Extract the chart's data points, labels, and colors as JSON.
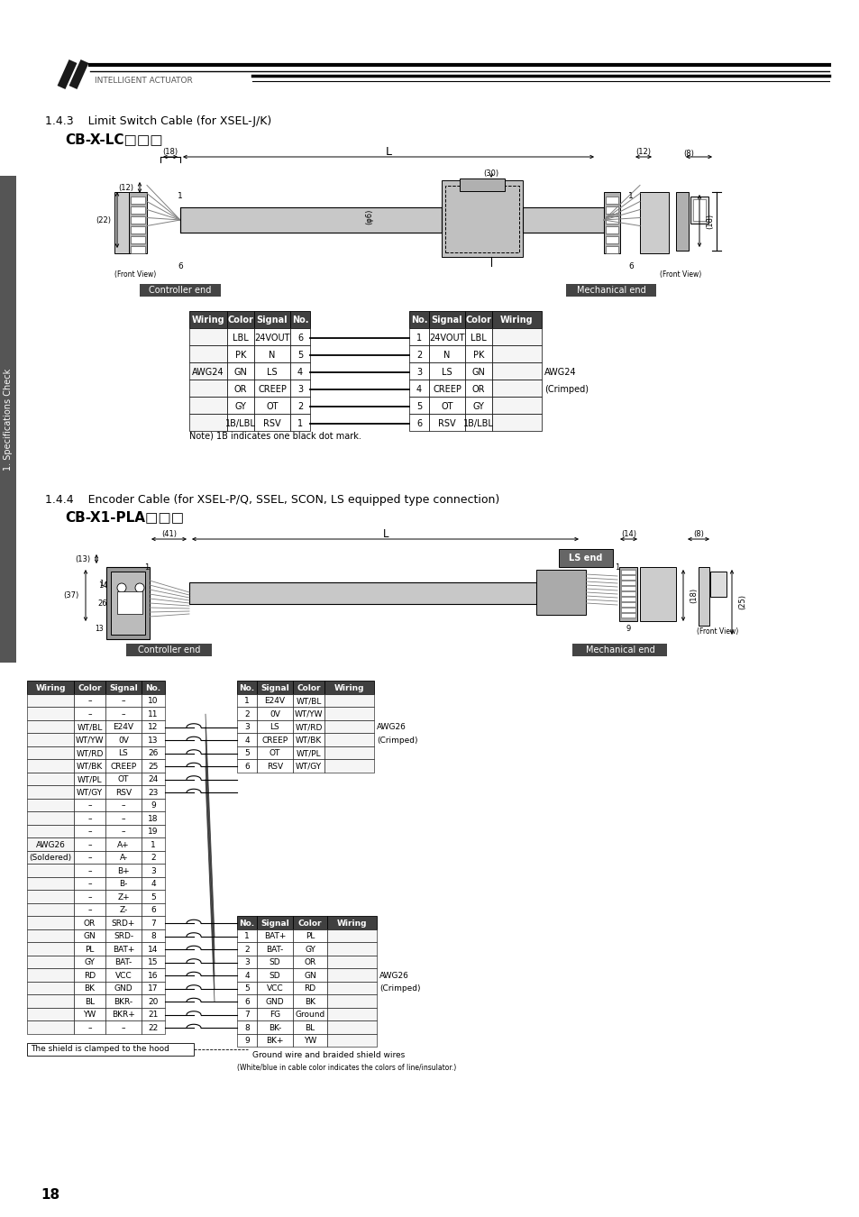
{
  "page_num": "18",
  "section_1": "1.4.3    Limit Switch Cable (for XSEL-J/K)",
  "subtitle_1": "CB-X-LC□□□",
  "section_2": "1.4.4    Encoder Cable (for XSEL-P/Q, SSEL, SCON, LS equipped type connection)",
  "subtitle_2": "CB-X1-PLA□□□",
  "company": "INTELLIGENT ACTUATOR",
  "note_1": "Note) 1B indicates one black dot mark.",
  "note_2": "The shield is clamped to the hood",
  "note_3": "Ground wire and braided shield wires",
  "note_4": "(White/blue in cable color indicates the colors of line/insulator.)",
  "table1_left_headers": [
    "Wiring",
    "Color",
    "Signal",
    "No."
  ],
  "table1_left_data": [
    [
      "",
      "LBL",
      "24VOUT",
      "6"
    ],
    [
      "",
      "PK",
      "N",
      "5"
    ],
    [
      "AWG24",
      "GN",
      "LS",
      "4"
    ],
    [
      "",
      "OR",
      "CREEP",
      "3"
    ],
    [
      "",
      "GY",
      "OT",
      "2"
    ],
    [
      "",
      "1B/LBL",
      "RSV",
      "1"
    ]
  ],
  "table1_right_headers": [
    "No.",
    "Signal",
    "Color",
    "Wiring"
  ],
  "table1_right_data": [
    [
      "1",
      "24VOUT",
      "LBL",
      ""
    ],
    [
      "2",
      "N",
      "PK",
      ""
    ],
    [
      "3",
      "LS",
      "GN",
      ""
    ],
    [
      "4",
      "CREEP",
      "OR",
      ""
    ],
    [
      "5",
      "OT",
      "GY",
      ""
    ],
    [
      "6",
      "RSV",
      "1B/LBL",
      ""
    ]
  ],
  "table2_left_headers": [
    "Wiring",
    "Color",
    "Signal",
    "No."
  ],
  "table2_left_data": [
    [
      "",
      "–",
      "–",
      "10"
    ],
    [
      "",
      "–",
      "–",
      "11"
    ],
    [
      "",
      "WT/BL",
      "E24V",
      "12"
    ],
    [
      "",
      "WT/YW",
      "0V",
      "13"
    ],
    [
      "",
      "WT/RD",
      "LS",
      "26"
    ],
    [
      "",
      "WT/BK",
      "CREEP",
      "25"
    ],
    [
      "",
      "WT/PL",
      "OT",
      "24"
    ],
    [
      "",
      "WT/GY",
      "RSV",
      "23"
    ],
    [
      "",
      "–",
      "–",
      "9"
    ],
    [
      "",
      "–",
      "–",
      "18"
    ],
    [
      "",
      "–",
      "–",
      "19"
    ],
    [
      "",
      "–",
      "A+",
      "1"
    ],
    [
      "AWG26",
      "–",
      "A-",
      "2"
    ],
    [
      "(Soldered)",
      "–",
      "B+",
      "3"
    ],
    [
      "",
      "–",
      "B-",
      "4"
    ],
    [
      "",
      "–",
      "Z+",
      "5"
    ],
    [
      "",
      "–",
      "Z-",
      "6"
    ],
    [
      "",
      "OR",
      "SRD+",
      "7"
    ],
    [
      "",
      "GN",
      "SRD-",
      "8"
    ],
    [
      "",
      "PL",
      "BAT+",
      "14"
    ],
    [
      "",
      "GY",
      "BAT-",
      "15"
    ],
    [
      "",
      "RD",
      "VCC",
      "16"
    ],
    [
      "",
      "BK",
      "GND",
      "17"
    ],
    [
      "",
      "BL",
      "BKR-",
      "20"
    ],
    [
      "",
      "YW",
      "BKR+",
      "21"
    ],
    [
      "",
      "–",
      "–",
      "22"
    ]
  ],
  "table2_right1_headers": [
    "No.",
    "Signal",
    "Color",
    "Wiring"
  ],
  "table2_right1_data": [
    [
      "1",
      "E24V",
      "WT/BL",
      ""
    ],
    [
      "2",
      "0V",
      "WT/YW",
      ""
    ],
    [
      "3",
      "LS",
      "WT/RD",
      "AWG26"
    ],
    [
      "4",
      "CREEP",
      "WT/BK",
      "(Crimped)"
    ],
    [
      "5",
      "OT",
      "WT/PL",
      ""
    ],
    [
      "6",
      "RSV",
      "WT/GY",
      ""
    ]
  ],
  "table2_right2_headers": [
    "No.",
    "Signal",
    "Color",
    "Wiring"
  ],
  "table2_right2_data": [
    [
      "1",
      "BAT+",
      "PL",
      ""
    ],
    [
      "2",
      "BAT-",
      "GY",
      ""
    ],
    [
      "3",
      "SD",
      "OR",
      ""
    ],
    [
      "4",
      "SD",
      "GN",
      "AWG26"
    ],
    [
      "5",
      "VCC",
      "RD",
      "(Crimped)"
    ],
    [
      "6",
      "GND",
      "BK",
      ""
    ],
    [
      "7",
      "FG",
      "Ground",
      ""
    ],
    [
      "8",
      "BK-",
      "BL",
      ""
    ],
    [
      "9",
      "BK+",
      "YW",
      ""
    ]
  ],
  "header_dark": "#3a3a3a",
  "body_bg": "#ffffff"
}
